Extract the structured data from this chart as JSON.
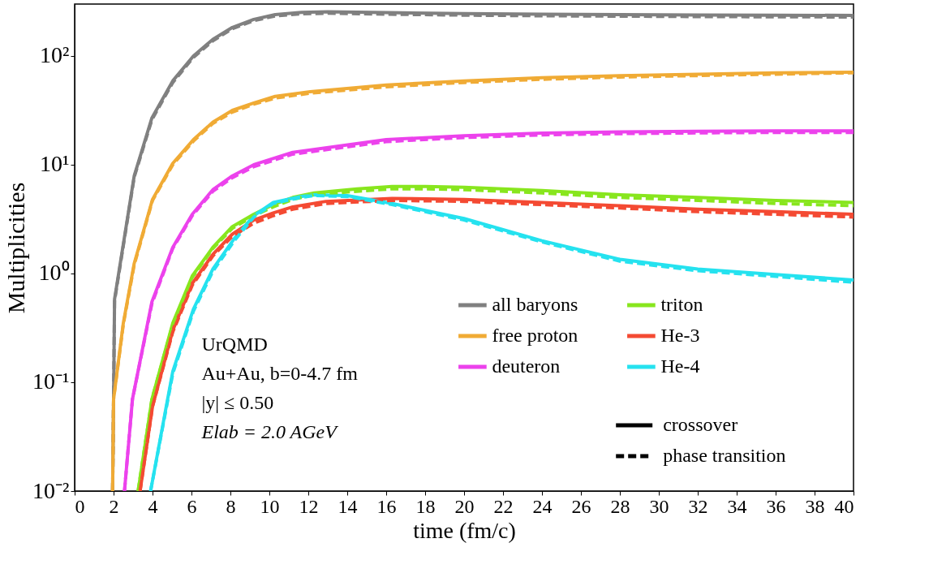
{
  "chart_data": {
    "type": "line",
    "xlabel": "time (fm/c)",
    "ylabel": "Multiplicities",
    "log": "y",
    "xlim": [
      0,
      40
    ],
    "xticks": [
      0,
      2,
      4,
      6,
      8,
      10,
      12,
      14,
      16,
      18,
      20,
      22,
      24,
      26,
      28,
      30,
      32,
      34,
      36,
      38,
      40
    ],
    "ylim": [
      0.01,
      300
    ],
    "yticks": [
      {
        "value": 0.01,
        "label": "10⁻²"
      },
      {
        "value": 0.1,
        "label": "10⁻¹"
      },
      {
        "value": 1,
        "label": "10⁰"
      },
      {
        "value": 10,
        "label": "10¹"
      },
      {
        "value": 100,
        "label": "10²"
      }
    ],
    "grid": false,
    "legend": "bottom right",
    "annotations": [
      "UrQMD",
      "Au+Au, b=0-4.7 fm",
      "|y| ≤ 0.50",
      "Elab = 2.0 AGeV",
      "crossover",
      "phase transition"
    ],
    "series": [
      {
        "name": "all baryons",
        "color": "#808080",
        "line_style": "solid",
        "x": [
          1.95,
          2.0,
          2.05,
          3.06,
          3.97,
          5.04,
          6.1,
          7.1,
          8.1,
          9.2,
          10.3,
          11.65,
          13,
          16,
          20,
          24,
          28,
          32,
          36,
          40
        ],
        "values": [
          0.01,
          0.07,
          0.58,
          7.9,
          27,
          59,
          100,
          142,
          183,
          217,
          240,
          252,
          255,
          250,
          245,
          242,
          240,
          238,
          237,
          236
        ]
      },
      {
        "name": "free proton",
        "color": "#f0ab35",
        "line_style": "solid",
        "x": [
          1.95,
          2.0,
          2.5,
          3.06,
          4.0,
          5.04,
          6.1,
          7.1,
          8.1,
          9.2,
          10.3,
          12.1,
          16,
          20,
          24,
          28,
          32,
          36,
          40
        ],
        "values": [
          0.01,
          0.07,
          0.35,
          1.24,
          4.8,
          10.3,
          17,
          24.6,
          31.6,
          37,
          42.5,
          47,
          54,
          59,
          63,
          66,
          68,
          70,
          71
        ]
      },
      {
        "name": "deuteron",
        "color": "#ec42ec",
        "line_style": "solid",
        "x": [
          2.56,
          2.97,
          3.97,
          5.04,
          6.04,
          7.1,
          8.1,
          9.2,
          11.2,
          16,
          20,
          24,
          28,
          32,
          36,
          40
        ],
        "values": [
          0.01,
          0.07,
          0.55,
          1.74,
          3.5,
          5.9,
          7.9,
          10,
          13,
          17,
          18.5,
          19.5,
          20,
          20.3,
          20.5,
          20.5
        ]
      },
      {
        "name": "triton",
        "color": "#88e61e",
        "line_style": "solid",
        "x": [
          3.26,
          3.97,
          5.04,
          6.04,
          7.1,
          8.1,
          9.2,
          10.2,
          11.2,
          12.3,
          14.5,
          16.3,
          18,
          20,
          24,
          28,
          32,
          36,
          40
        ],
        "values": [
          0.01,
          0.07,
          0.35,
          0.95,
          1.74,
          2.7,
          3.5,
          4.3,
          5.0,
          5.5,
          6.0,
          6.3,
          6.3,
          6.2,
          5.8,
          5.3,
          5.0,
          4.7,
          4.5
        ]
      },
      {
        "name": "He-3",
        "color": "#f44a33",
        "line_style": "solid",
        "x": [
          3.36,
          4.0,
          5.04,
          6.04,
          7.1,
          8.1,
          9.2,
          10.2,
          11.2,
          12.9,
          16.3,
          20,
          24,
          28,
          32,
          36,
          40
        ],
        "values": [
          0.01,
          0.06,
          0.3,
          0.81,
          1.5,
          2.3,
          3.1,
          3.6,
          4.1,
          4.6,
          4.9,
          4.8,
          4.5,
          4.2,
          3.9,
          3.7,
          3.5
        ]
      },
      {
        "name": "He-4",
        "color": "#25e2ef",
        "line_style": "solid",
        "x": [
          3.9,
          5.04,
          6.1,
          7.1,
          8.2,
          9.2,
          10.2,
          11.6,
          12.3,
          14,
          16.3,
          20,
          24,
          28,
          32,
          36,
          40
        ],
        "values": [
          0.01,
          0.126,
          0.47,
          1.1,
          2.1,
          3.4,
          4.5,
          5.1,
          5.3,
          5.2,
          4.4,
          3.2,
          2.0,
          1.35,
          1.1,
          0.98,
          0.87
        ]
      },
      {
        "color": "#808080",
        "line_style": "dashed",
        "x": [
          1.95,
          2.0,
          2.05,
          3.06,
          3.97,
          5.04,
          6.1,
          7.1,
          8.1,
          9.2,
          10.3,
          11.65,
          13,
          16,
          20,
          24,
          28,
          32,
          36,
          40
        ],
        "values": [
          0.01,
          0.07,
          0.56,
          7.7,
          26,
          57,
          97,
          138,
          178,
          211,
          233,
          244,
          247,
          242,
          237,
          234,
          232,
          230,
          229,
          228
        ]
      },
      {
        "color": "#f0ab35",
        "line_style": "dashed",
        "x": [
          1.95,
          2.0,
          2.5,
          3.06,
          4.0,
          5.04,
          6.1,
          7.1,
          8.1,
          9.2,
          10.3,
          12.1,
          16,
          20,
          24,
          28,
          32,
          36,
          40
        ],
        "values": [
          0.01,
          0.07,
          0.34,
          1.2,
          4.7,
          10,
          16.5,
          24,
          30.5,
          36,
          41,
          45.5,
          52,
          57,
          61,
          64,
          66,
          68,
          70
        ]
      },
      {
        "color": "#ec42ec",
        "line_style": "dashed",
        "x": [
          2.56,
          2.97,
          3.97,
          5.04,
          6.04,
          7.1,
          8.1,
          9.2,
          11.2,
          16,
          20,
          24,
          28,
          32,
          36,
          40
        ],
        "values": [
          0.01,
          0.07,
          0.53,
          1.7,
          3.4,
          5.7,
          7.6,
          9.6,
          12.5,
          16.3,
          17.8,
          18.8,
          19.3,
          19.6,
          19.8,
          19.8
        ]
      },
      {
        "color": "#88e61e",
        "line_style": "dashed",
        "x": [
          3.26,
          3.97,
          5.04,
          6.04,
          7.1,
          8.1,
          9.2,
          10.2,
          11.2,
          12.3,
          14.5,
          16.3,
          18,
          20,
          24,
          28,
          32,
          36,
          40
        ],
        "values": [
          0.01,
          0.07,
          0.34,
          0.92,
          1.7,
          2.6,
          3.4,
          4.1,
          4.8,
          5.3,
          5.7,
          6.0,
          6.0,
          5.9,
          5.5,
          5.0,
          4.7,
          4.4,
          4.2
        ]
      },
      {
        "color": "#f44a33",
        "line_style": "dashed",
        "x": [
          3.36,
          4.0,
          5.04,
          6.04,
          7.1,
          8.1,
          9.2,
          10.2,
          11.2,
          12.9,
          16.3,
          20,
          24,
          28,
          32,
          36,
          40
        ],
        "values": [
          0.01,
          0.06,
          0.29,
          0.78,
          1.45,
          2.2,
          2.9,
          3.4,
          3.9,
          4.4,
          4.7,
          4.6,
          4.3,
          4.0,
          3.7,
          3.5,
          3.3
        ]
      },
      {
        "color": "#25e2ef",
        "line_style": "dashed",
        "x": [
          3.9,
          5.04,
          6.1,
          7.1,
          8.2,
          9.2,
          10.2,
          11.6,
          12.3,
          14,
          16.3,
          20,
          24,
          28,
          32,
          36,
          40
        ],
        "values": [
          0.01,
          0.12,
          0.45,
          1.05,
          2.0,
          3.3,
          4.4,
          5.0,
          5.2,
          5.1,
          4.3,
          3.1,
          1.95,
          1.3,
          1.06,
          0.94,
          0.83
        ]
      }
    ]
  }
}
